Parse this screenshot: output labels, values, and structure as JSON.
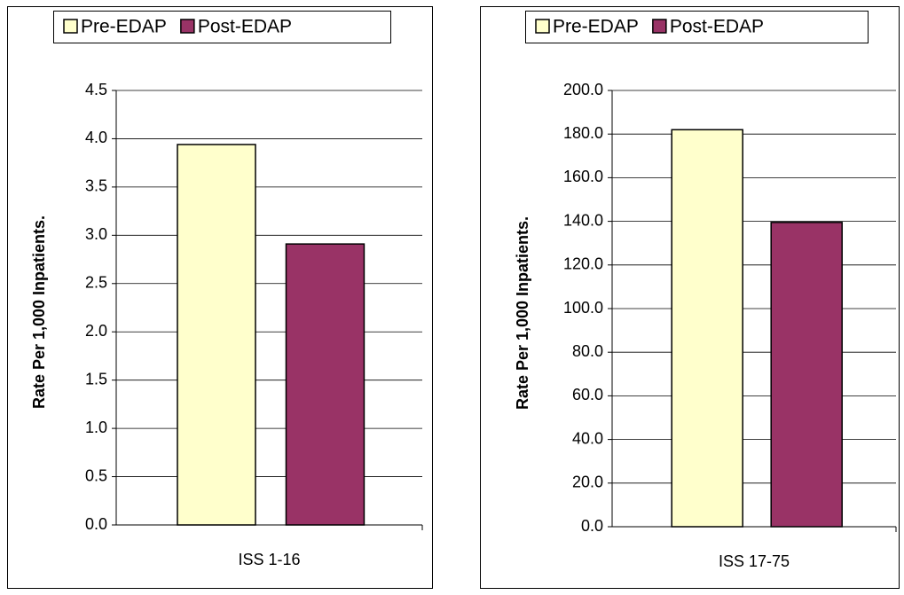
{
  "chart_data": [
    {
      "type": "bar",
      "ylabel": "Rate Per 1,000 Inpatients.",
      "categories": [
        "ISS 1-16"
      ],
      "series": [
        {
          "name": "Pre-EDAP",
          "color": "#ffffcc",
          "values": [
            3.94
          ]
        },
        {
          "name": "Post-EDAP",
          "color": "#993366",
          "values": [
            2.91
          ]
        }
      ],
      "ylim": [
        0,
        4.5
      ],
      "yticks": [
        {
          "value": 0,
          "label": "0.0"
        },
        0.5,
        {
          "value": 1,
          "label": "1.0"
        },
        1.5,
        {
          "value": 2,
          "label": "2.0"
        },
        2.5,
        {
          "value": 3,
          "label": "3.0"
        },
        3.5,
        {
          "value": 4,
          "label": "4.0"
        },
        4.5
      ],
      "grid": true,
      "legend": "top"
    },
    {
      "type": "bar",
      "ylabel": "Rate Per 1,000 Inpatients.",
      "categories": [
        "ISS 17-75"
      ],
      "series": [
        {
          "name": "Pre-EDAP",
          "color": "#ffffcc",
          "values": [
            182
          ]
        },
        {
          "name": "Post-EDAP",
          "color": "#993366",
          "values": [
            139.5
          ]
        }
      ],
      "ylim": [
        0,
        200
      ],
      "yticks": [
        {
          "value": 0,
          "label": "0.0"
        },
        {
          "value": 20,
          "label": "20.0"
        },
        {
          "value": 40,
          "label": "40.0"
        },
        {
          "value": 60,
          "label": "60.0"
        },
        {
          "value": 80,
          "label": "80.0"
        },
        {
          "value": 100,
          "label": "100.0"
        },
        {
          "value": 120,
          "label": "120.0"
        },
        {
          "value": 140,
          "label": "140.0"
        },
        {
          "value": 160,
          "label": "160.0"
        },
        {
          "value": 180,
          "label": "180.0"
        },
        {
          "value": 200,
          "label": "200.0"
        }
      ],
      "grid": true,
      "legend": "top"
    }
  ]
}
